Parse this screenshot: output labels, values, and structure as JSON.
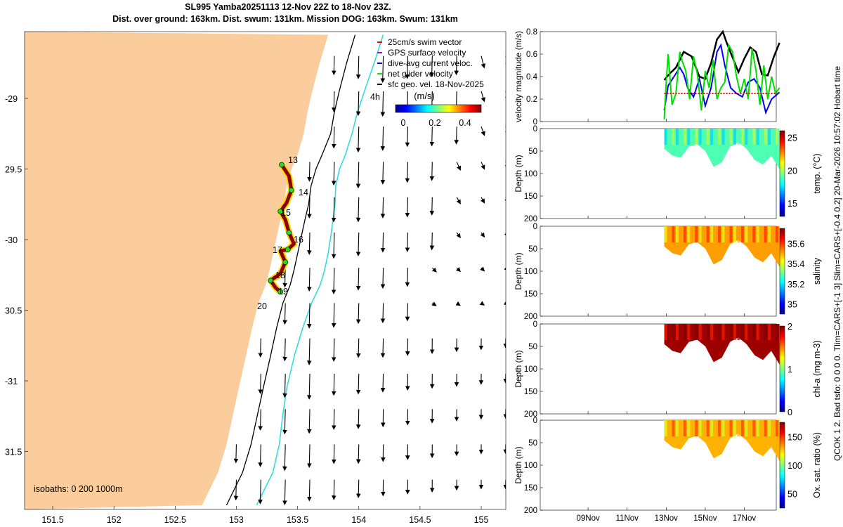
{
  "header": {
    "title_line1": "SL995 Yamba20251113 12-Nov 22Z to 18-Nov 23Z.",
    "title_line2": "Dist. over ground: 163km. Dist. swum: 131km. Mission DOG: 163km. Swum: 131km"
  },
  "side_note": "QCOK 1  2. Bad tsfo: 0  0  0  0. Tlim=CARS+[-1 3] Slim=CARS+[-0.4 0.2] 20-Mar-2026 10:57:02 Hobart time",
  "colors": {
    "land": "#fbcd9c",
    "ocean": "#ffffff",
    "isobath_200": "#000000",
    "isobath_1000": "#33dddd",
    "track": "#8b0000",
    "swim_vector": "#ff0000",
    "gps_velocity": "#cc00cc",
    "dive_avg": "#0000ff",
    "net_glider": "#00ee00",
    "sfc_geo": "#000000"
  },
  "map": {
    "lon_ticks": [
      "151.5",
      "152",
      "152.5",
      "153",
      "153.5",
      "154",
      "154.5",
      "155"
    ],
    "lat_ticks": [
      "-29",
      "29.5",
      "-30",
      "30.5",
      "-31",
      "31.5"
    ],
    "isobath_note": "isobaths: 0   200  1000m",
    "legend": [
      {
        "label": "25cm/s swim vector",
        "color": "#ff0000"
      },
      {
        "label": "GPS surface velocity",
        "color": "#cc00cc"
      },
      {
        "label": "dive-avg current veloc.",
        "color": "#0000ff"
      },
      {
        "label": "net glider velocity",
        "color": "#00ee00"
      },
      {
        "label": "sfc geo. vel. 18-Nov-2025",
        "color": "#000000"
      }
    ],
    "colorbar_title": "(m/s)",
    "colorbar_ticks": [
      "0",
      "0.2",
      "0.4"
    ],
    "hour_label": "4h",
    "day_labels": [
      "13",
      "14",
      "15",
      "16",
      "17",
      "18",
      "19",
      "20"
    ],
    "track_points": [
      [
        153.37,
        -29.47
      ],
      [
        153.43,
        -29.55
      ],
      [
        153.45,
        -29.65
      ],
      [
        153.41,
        -29.74
      ],
      [
        153.36,
        -29.8
      ],
      [
        153.4,
        -29.86
      ],
      [
        153.43,
        -29.95
      ],
      [
        153.47,
        -30.03
      ],
      [
        153.42,
        -30.07
      ],
      [
        153.36,
        -30.08
      ],
      [
        153.4,
        -30.16
      ],
      [
        153.36,
        -30.24
      ],
      [
        153.28,
        -30.29
      ],
      [
        153.32,
        -30.34
      ],
      [
        153.36,
        -30.37
      ]
    ]
  },
  "chart_data": [
    {
      "type": "line",
      "ylabel": "velocity magnitude (m/s)",
      "ylim": [
        0,
        0.8
      ],
      "yticks": [
        "0",
        "0.2",
        "0.4",
        "0.6",
        "0.8"
      ],
      "x_range_days": [
        "06Nov",
        "19Nov"
      ],
      "series": [
        {
          "color": "#000000",
          "x": [
            12.9,
            13.2,
            13.5,
            13.9,
            14.3,
            14.7,
            15.0,
            15.3,
            15.6,
            15.9,
            16.1,
            16.4,
            16.7,
            17.0,
            17.3,
            17.6,
            17.9,
            18.2,
            18.5,
            18.8
          ],
          "values": [
            0.37,
            0.43,
            0.48,
            0.62,
            0.58,
            0.4,
            0.38,
            0.52,
            0.73,
            0.8,
            0.7,
            0.57,
            0.44,
            0.56,
            0.66,
            0.62,
            0.42,
            0.41,
            0.57,
            0.7
          ]
        },
        {
          "color": "#0000ff",
          "x": [
            12.9,
            13.1,
            13.4,
            13.7,
            13.9,
            14.1,
            14.4,
            14.7,
            15.0,
            15.3,
            15.6,
            15.8,
            16.0,
            16.3,
            16.6,
            16.9,
            17.2,
            17.5,
            17.8,
            18.1,
            18.4,
            18.8
          ],
          "values": [
            0.1,
            0.32,
            0.4,
            0.48,
            0.42,
            0.3,
            0.22,
            0.38,
            0.14,
            0.3,
            0.62,
            0.68,
            0.5,
            0.3,
            0.25,
            0.22,
            0.35,
            0.38,
            0.3,
            0.08,
            0.2,
            0.26
          ]
        },
        {
          "color": "#00dd00",
          "x": [
            12.9,
            13.0,
            13.1,
            13.3,
            13.5,
            13.7,
            13.8,
            14.0,
            14.2,
            14.4,
            14.6,
            14.8,
            15.0,
            15.2,
            15.4,
            15.6,
            15.8,
            16.0,
            16.2,
            16.4,
            16.6,
            16.8,
            17.0,
            17.2,
            17.4,
            17.6,
            17.8,
            18.0,
            18.2,
            18.4,
            18.6,
            18.8
          ],
          "values": [
            0.02,
            0.35,
            0.6,
            0.15,
            0.25,
            0.62,
            0.55,
            0.45,
            0.2,
            0.58,
            0.42,
            0.1,
            0.45,
            0.3,
            0.55,
            0.2,
            0.3,
            0.35,
            0.68,
            0.62,
            0.4,
            0.25,
            0.38,
            0.2,
            0.65,
            0.45,
            0.15,
            0.5,
            0.2,
            0.4,
            0.25,
            0.3
          ]
        },
        {
          "color": "#ff0000",
          "x": [
            12.9,
            18.8
          ],
          "values": [
            0.25,
            0.25
          ]
        }
      ]
    },
    {
      "type": "heatmap",
      "ylabel": "Depth (m)",
      "colorbar_label": "temp. (°C)",
      "yticks": [
        "0",
        "50",
        "100",
        "150",
        "200"
      ],
      "cbar_ticks": [
        "25",
        "20",
        "15"
      ],
      "clim": [
        13,
        26
      ],
      "x_range_days": [
        12.9,
        18.8
      ],
      "profile_depths_m": [
        45,
        60,
        65,
        40,
        35,
        50,
        85,
        75,
        40,
        30,
        45,
        70,
        80,
        60,
        90
      ]
    },
    {
      "type": "heatmap",
      "ylabel": "Depth (m)",
      "colorbar_label": "salinity",
      "yticks": [
        "0",
        "50",
        "100",
        "150",
        "200"
      ],
      "cbar_ticks": [
        "35.6",
        "35.4",
        "35.2",
        "35"
      ],
      "clim": [
        34.9,
        35.75
      ],
      "x_range_days": [
        12.9,
        18.8
      ],
      "profile_depths_m": [
        45,
        60,
        65,
        40,
        35,
        50,
        85,
        75,
        40,
        30,
        45,
        70,
        80,
        60,
        90
      ]
    },
    {
      "type": "heatmap",
      "ylabel": "Depth (m)",
      "colorbar_label": "chl-a  (mg m-3)",
      "yticks": [
        "0",
        "50",
        "100",
        "150",
        "200"
      ],
      "cbar_ticks": [
        "2",
        "1",
        "0"
      ],
      "clim": [
        0,
        2
      ],
      "x_range_days": [
        12.9,
        18.8
      ],
      "profile_depths_m": [
        45,
        60,
        65,
        40,
        35,
        50,
        85,
        75,
        40,
        30,
        45,
        70,
        80,
        60,
        90
      ]
    },
    {
      "type": "heatmap",
      "ylabel": "Depth (m)",
      "colorbar_label": "Ox. sat. ratio (%)",
      "yticks": [
        "0",
        "50",
        "100",
        "150",
        "200"
      ],
      "cbar_ticks": [
        "150",
        "100",
        "50"
      ],
      "clim": [
        25,
        175
      ],
      "x_range_days": [
        12.9,
        18.8
      ],
      "xticks": [
        "09Nov",
        "11Nov",
        "13Nov",
        "15Nov",
        "17Nov"
      ],
      "profile_depths_m": [
        45,
        60,
        65,
        40,
        35,
        50,
        85,
        75,
        40,
        30,
        45,
        70,
        80,
        60,
        90
      ]
    }
  ]
}
